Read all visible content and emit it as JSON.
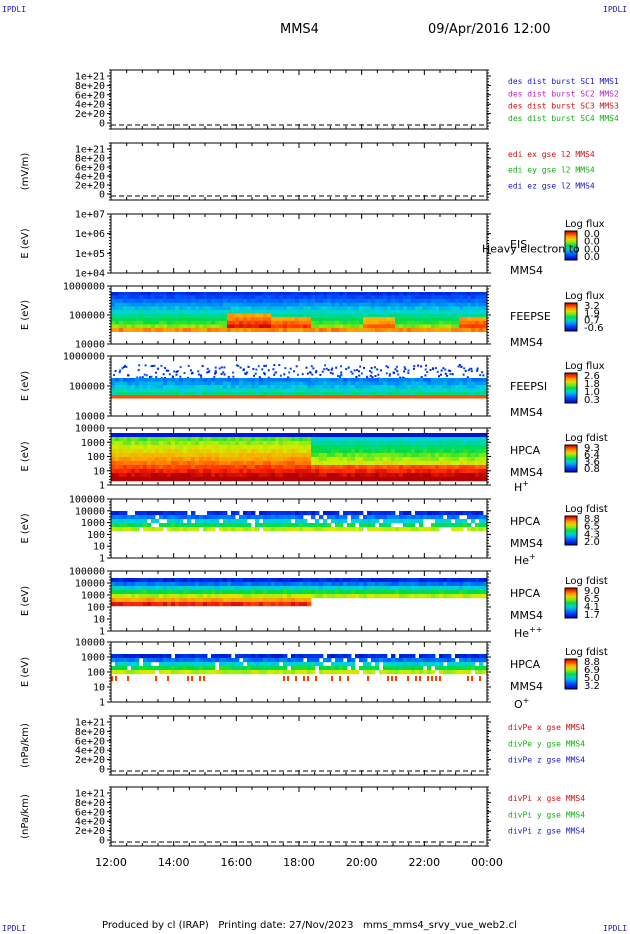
{
  "corner_label": "IPDLI",
  "header": {
    "spacecraft": "MMS4",
    "datetime": "09/Apr/2016 12:00"
  },
  "footer": {
    "text": "Produced by cl (IRAP)   Printing date: 27/Nov/2023   mms_mms4_srvy_vue_web2.cl"
  },
  "chart_data": {
    "type": "heatmap",
    "x_ticks": [
      "12:00",
      "14:00",
      "16:00",
      "18:00",
      "20:00",
      "22:00",
      "00:00"
    ],
    "xlim": [
      0,
      12
    ],
    "panels": [
      {
        "kind": "line",
        "ylabel": "",
        "y_ticks": [
          "1e+21",
          "8e+20",
          "6e+20",
          "4e+20",
          "2e+20",
          "0"
        ],
        "ylim": [
          0,
          1e+21
        ],
        "legend": [
          {
            "text": "des dist burst SC1 MMS1",
            "color": "#1a1acc"
          },
          {
            "text": "des dist burst SC2 MMS2",
            "color": "#c020c0"
          },
          {
            "text": "des dist burst SC3 MMS3",
            "color": "#d01010"
          },
          {
            "text": "des dist burst SC4 MMS4",
            "color": "#10b010"
          }
        ]
      },
      {
        "kind": "line",
        "ylabel": "(mV/m)",
        "y_ticks": [
          "1e+21",
          "8e+20",
          "6e+20",
          "4e+20",
          "2e+20",
          "0"
        ],
        "ylim": [
          0,
          1e+21
        ],
        "legend": [
          {
            "text": "edi ex gse l2 MMS4",
            "color": "#d01010"
          },
          {
            "text": "edi ey gse l2 MMS4",
            "color": "#10b010"
          },
          {
            "text": "edi ez gse l2 MMS4",
            "color": "#1a1acc"
          }
        ]
      },
      {
        "kind": "spec",
        "ylabel": "E (eV)",
        "scale": "log",
        "y_ticks": [
          "1e+07",
          "1e+06",
          "1e+05",
          "1e+04"
        ],
        "ylim": [
          10000,
          10000000
        ],
        "instrument": [
          "EIS",
          "MMS4"
        ],
        "overlay_text": "Heavy electron to",
        "colorbar": {
          "title": "Log flux",
          "ticks": [
            "0.0",
            "0.0",
            "0.0",
            "0.0"
          ]
        },
        "data": "empty"
      },
      {
        "kind": "spec",
        "ylabel": "E (eV)",
        "scale": "log",
        "y_ticks": [
          "1000000",
          "100000",
          "10000"
        ],
        "ylim": [
          10000,
          1000000
        ],
        "instrument": [
          "FEEPSE",
          "MMS4"
        ],
        "colorbar": {
          "title": "Log flux",
          "ticks": [
            "3.2",
            "1.9",
            "0.7",
            "-0.6"
          ]
        },
        "data": "feepse"
      },
      {
        "kind": "spec",
        "ylabel": "E (eV)",
        "scale": "log",
        "y_ticks": [
          "1000000",
          "100000",
          "10000"
        ],
        "ylim": [
          10000,
          1000000
        ],
        "instrument": [
          "FEEPSI",
          "MMS4"
        ],
        "colorbar": {
          "title": "Log flux",
          "ticks": [
            "2.6",
            "1.8",
            "1.0",
            "0.3"
          ]
        },
        "data": "feepsi"
      },
      {
        "kind": "spec",
        "ylabel": "E (eV)",
        "scale": "log",
        "y_ticks": [
          "10000",
          "1000",
          "100",
          "10",
          "1"
        ],
        "ylim": [
          1,
          40000
        ],
        "instrument": [
          "HPCA",
          "MMS4"
        ],
        "species": "H",
        "charge": "+",
        "colorbar": {
          "title": "Log fdist",
          "ticks": [
            "9.3",
            "6.4",
            "3.6",
            "0.8"
          ]
        },
        "data": "hplus"
      },
      {
        "kind": "spec",
        "ylabel": "E (eV)",
        "scale": "log",
        "y_ticks": [
          "100000",
          "10000",
          "1000",
          "100",
          "10",
          "1"
        ],
        "ylim": [
          1,
          100000
        ],
        "instrument": [
          "HPCA",
          "MMS4"
        ],
        "species": "He",
        "charge": "+",
        "colorbar": {
          "title": "Log fdist",
          "ticks": [
            "8.8",
            "6.5",
            "4.3",
            "2.0"
          ]
        },
        "data": "heplus"
      },
      {
        "kind": "spec",
        "ylabel": "E (eV)",
        "scale": "log",
        "y_ticks": [
          "100000",
          "10000",
          "1000",
          "100",
          "10",
          "1"
        ],
        "ylim": [
          1,
          100000
        ],
        "instrument": [
          "HPCA",
          "MMS4"
        ],
        "species": "He",
        "charge": "++",
        "colorbar": {
          "title": "Log fdist",
          "ticks": [
            "9.0",
            "6.5",
            "4.1",
            "1.7"
          ]
        },
        "data": "heplusplus"
      },
      {
        "kind": "spec",
        "ylabel": "E (eV)",
        "scale": "log",
        "y_ticks": [
          "10000",
          "1000",
          "100",
          "10",
          "1"
        ],
        "ylim": [
          1,
          40000
        ],
        "instrument": [
          "HPCA",
          "MMS4"
        ],
        "species": "O",
        "charge": "+",
        "colorbar": {
          "title": "Log fdist",
          "ticks": [
            "8.8",
            "6.9",
            "5.0",
            "3.2"
          ]
        },
        "data": "oplus"
      },
      {
        "kind": "line",
        "ylabel": "(nPa/km)",
        "y_ticks": [
          "1e+21",
          "8e+20",
          "6e+20",
          "4e+20",
          "2e+20",
          "0"
        ],
        "ylim": [
          0,
          1e+21
        ],
        "legend": [
          {
            "text": "divPe x gse MMS4",
            "color": "#d01010"
          },
          {
            "text": "divPe y gse MMS4",
            "color": "#10b010"
          },
          {
            "text": "divPe z gse MMS4",
            "color": "#1a1acc"
          }
        ]
      },
      {
        "kind": "line",
        "ylabel": "(nPa/km)",
        "y_ticks": [
          "1e+21",
          "8e+20",
          "6e+20",
          "4e+20",
          "2e+20",
          "0"
        ],
        "ylim": [
          0,
          1e+21
        ],
        "legend": [
          {
            "text": "divPi x gse MMS4",
            "color": "#d01010"
          },
          {
            "text": "divPi y gse MMS4",
            "color": "#10b010"
          },
          {
            "text": "divPi z gse MMS4",
            "color": "#1a1acc"
          }
        ]
      }
    ]
  }
}
